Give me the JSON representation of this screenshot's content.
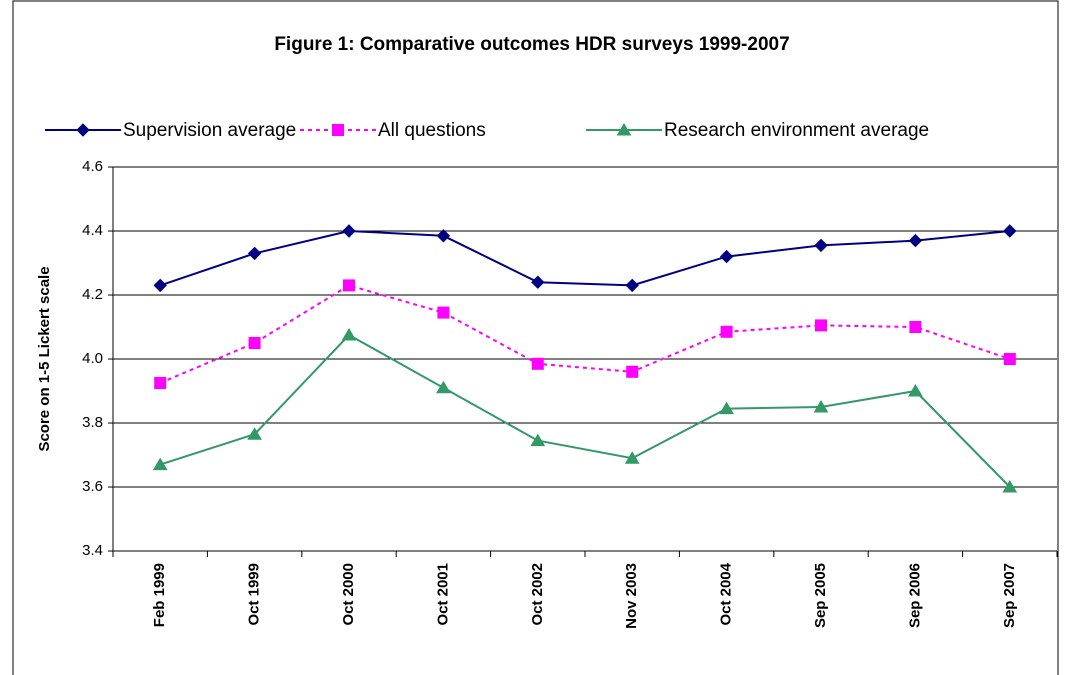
{
  "chart_data": {
    "type": "line",
    "title": "Figure 1: Comparative outcomes HDR surveys 1999-2007",
    "y_label": "Score on 1-5 Lickert scale",
    "categories": [
      "Feb 1999",
      "Oct 1999",
      "Oct 2000",
      "Oct 2001",
      "Oct 2002",
      "Nov 2003",
      "Oct 2004",
      "Sep 2005",
      "Sep 2006",
      "Sep 2007"
    ],
    "series": [
      {
        "name": "Supervision average",
        "color": "#000080",
        "marker": "diamond",
        "dash": "solid",
        "values": [
          4.23,
          4.33,
          4.4,
          4.385,
          4.24,
          4.23,
          4.32,
          4.355,
          4.37,
          4.4
        ]
      },
      {
        "name": "All questions",
        "color": "#ff00ff",
        "marker": "square",
        "dash": "dotted",
        "values": [
          3.925,
          4.05,
          4.23,
          4.145,
          3.985,
          3.96,
          4.085,
          4.105,
          4.1,
          4.0
        ]
      },
      {
        "name": "Research environment average",
        "color": "#339966",
        "marker": "triangle",
        "dash": "solid",
        "values": [
          3.67,
          3.765,
          4.075,
          3.91,
          3.745,
          3.69,
          3.845,
          3.85,
          3.9,
          3.6
        ]
      }
    ],
    "ylim": [
      3.4,
      4.6
    ],
    "yticks": [
      3.4,
      3.6,
      3.8,
      {
        "value": 4,
        "label": "4.0"
      },
      4.2,
      4.4,
      4.6
    ],
    "grid": true,
    "legend": "top"
  }
}
